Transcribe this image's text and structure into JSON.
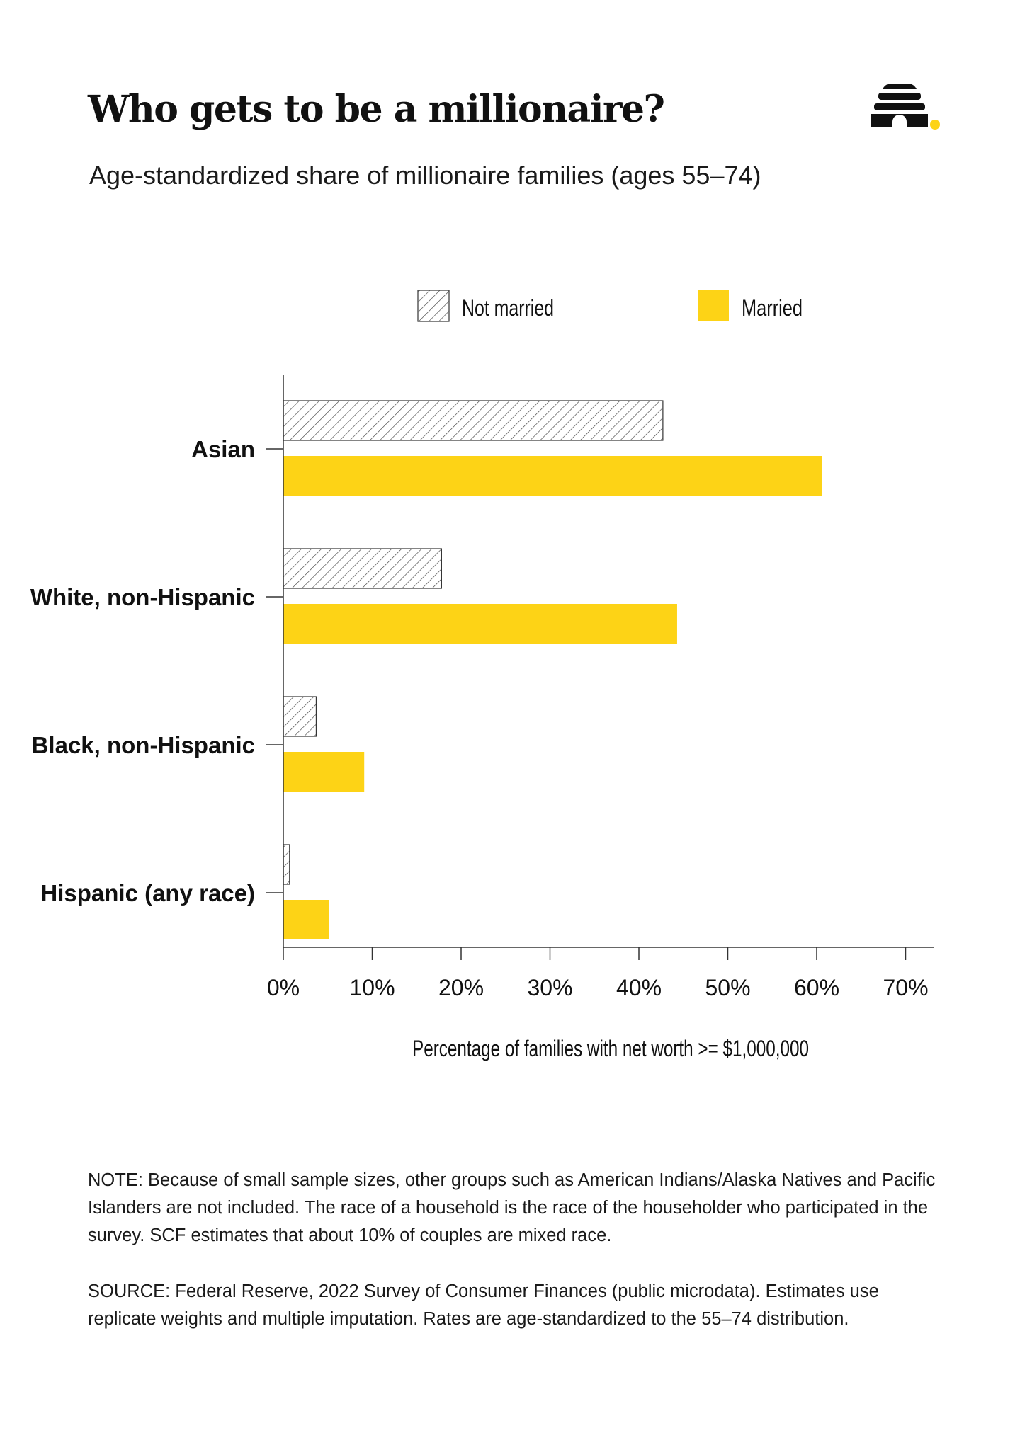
{
  "header": {
    "title": "Who gets to be a millionaire?",
    "subtitle": "Age-standardized share of millionaire families (ages 55–74)",
    "logo_icon": "beehive-logo-icon"
  },
  "colors": {
    "married": "#FDD316",
    "not_married_hatch": "#333333",
    "axis": "#333333",
    "text": "#111111",
    "logo_dot": "#FDD316"
  },
  "chart_data": {
    "type": "bar",
    "orientation": "horizontal",
    "categories": [
      "Asian",
      "White, non-Hispanic",
      "Black, non-Hispanic",
      "Hispanic (any race)"
    ],
    "series": [
      {
        "name": "Not married",
        "values": [
          42.7,
          17.8,
          3.7,
          0.7
        ],
        "fill": "hatched"
      },
      {
        "name": "Married",
        "values": [
          60.6,
          44.3,
          9.1,
          5.1
        ],
        "fill": "#FDD316"
      }
    ],
    "xlabel": "Percentage of families with net worth >= $1,000,000",
    "ylabel": "",
    "xlim": [
      0,
      70
    ],
    "xticks": [
      "0%",
      "10%",
      "20%",
      "30%",
      "40%",
      "50%",
      "60%",
      "70%"
    ],
    "legend_position": "top-center",
    "grid": false
  },
  "footer": {
    "note": "NOTE: Because of small sample sizes, other groups such as American Indians/Alaska Natives and Pacific Islanders are not included. The race of a household is the race of the householder who participated in the survey. SCF estimates that about 10% of couples are mixed race.",
    "source": "SOURCE: Federal Reserve, 2022 Survey of Consumer Finances (public microdata). Estimates use replicate weights and multiple imputation. Rates are age-standardized to the 55–74 distribution."
  }
}
